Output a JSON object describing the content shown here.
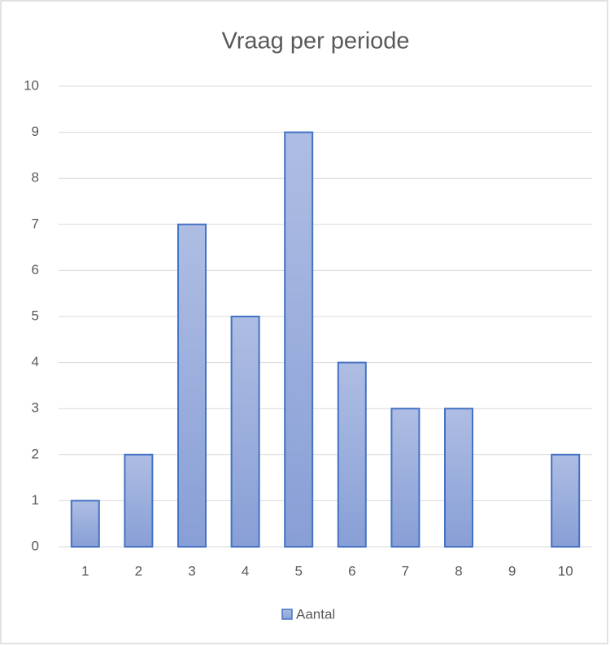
{
  "chart_data": {
    "type": "bar",
    "title": "Vraag per periode",
    "categories": [
      "1",
      "2",
      "3",
      "4",
      "5",
      "6",
      "7",
      "8",
      "9",
      "10"
    ],
    "series": [
      {
        "name": "Aantal",
        "color": "#4472c4",
        "values": [
          1,
          2,
          7,
          5,
          9,
          4,
          3,
          3,
          0,
          2
        ]
      }
    ],
    "ylim": [
      0,
      10
    ],
    "yticks": [
      0,
      1,
      2,
      3,
      4,
      5,
      6,
      7,
      8,
      9,
      10
    ],
    "grid": true,
    "legend": "bottom"
  }
}
